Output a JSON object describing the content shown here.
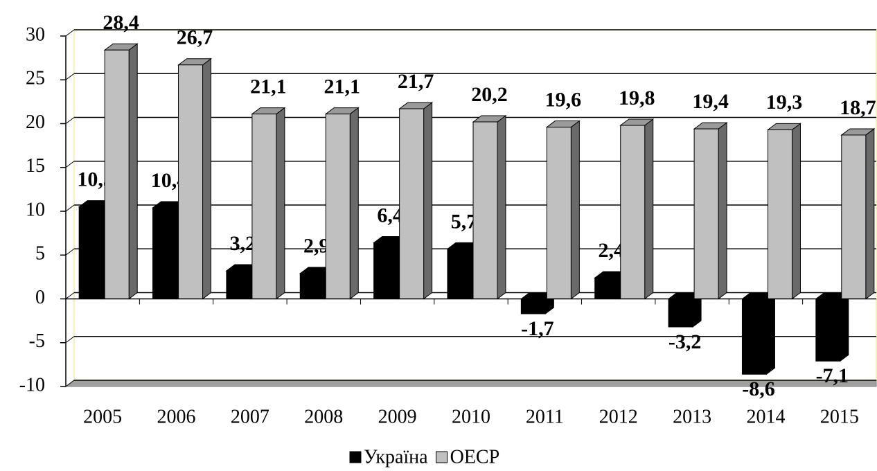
{
  "chart_data": {
    "type": "bar",
    "categories": [
      "2005",
      "2006",
      "2007",
      "2008",
      "2009",
      "2010",
      "2011",
      "2012",
      "2013",
      "2014",
      "2015"
    ],
    "series": [
      {
        "name": "Україна",
        "color": "#000000",
        "values": [
          10.5,
          10.4,
          3.2,
          2.9,
          6.4,
          5.7,
          -1.7,
          2.4,
          -3.2,
          -8.6,
          -7.1
        ],
        "value_labels": [
          "10,5",
          "10,4",
          "3,2",
          "2,9",
          "6,4",
          "5,7",
          "-1,7",
          "2,4",
          "-3,2",
          "-8,6",
          "-7,1"
        ]
      },
      {
        "name": "ОЕСР",
        "color": "#c0c0c0",
        "values": [
          28.4,
          26.7,
          21.1,
          21.1,
          21.7,
          20.2,
          19.6,
          19.8,
          19.4,
          19.3,
          18.7
        ],
        "value_labels": [
          "28,4",
          "26,7",
          "21,1",
          "21,1",
          "21,7",
          "20,2",
          "19,6",
          "19,8",
          "19,4",
          "19,3",
          "18,7"
        ]
      }
    ],
    "ylim": [
      -10,
      30
    ],
    "yticks": [
      -10,
      -5,
      0,
      5,
      10,
      15,
      20,
      25,
      30
    ],
    "grid": true,
    "legend": "bottom"
  }
}
